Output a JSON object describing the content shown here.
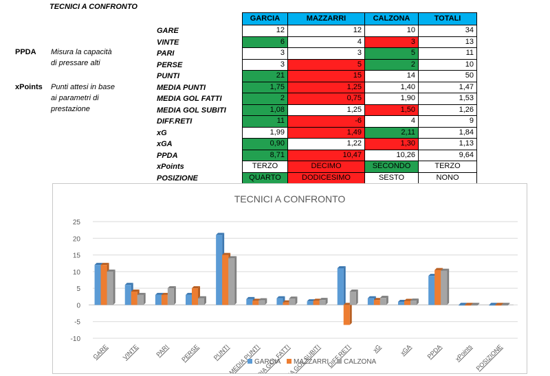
{
  "sheet": {
    "title": "TECNICI A CONFRONTO",
    "side_labels": [
      {
        "name": "PPDA",
        "desc": [
          "Misura la capacità",
          "di pressare alti"
        ]
      },
      {
        "name": "xPoints",
        "desc": [
          "Punti attesi in base",
          "ai parametri di",
          "prestazione"
        ]
      }
    ],
    "columns": [
      "GARCIA",
      "MAZZARRI",
      "CALZONA",
      "TOTALI"
    ],
    "rows": [
      {
        "label": "GARE",
        "cells": [
          {
            "v": "12",
            "c": ""
          },
          {
            "v": "12",
            "c": ""
          },
          {
            "v": "10",
            "c": ""
          },
          {
            "v": "34",
            "c": ""
          }
        ]
      },
      {
        "label": "VINTE",
        "cells": [
          {
            "v": "6",
            "c": "g"
          },
          {
            "v": "4",
            "c": ""
          },
          {
            "v": "3",
            "c": "r"
          },
          {
            "v": "13",
            "c": ""
          }
        ]
      },
      {
        "label": "PARI",
        "cells": [
          {
            "v": "3",
            "c": ""
          },
          {
            "v": "3",
            "c": ""
          },
          {
            "v": "5",
            "c": "g"
          },
          {
            "v": "11",
            "c": ""
          }
        ]
      },
      {
        "label": "PERSE",
        "cells": [
          {
            "v": "3",
            "c": ""
          },
          {
            "v": "5",
            "c": "r"
          },
          {
            "v": "2",
            "c": "g"
          },
          {
            "v": "10",
            "c": ""
          }
        ]
      },
      {
        "label": "PUNTI",
        "cells": [
          {
            "v": "21",
            "c": "g"
          },
          {
            "v": "15",
            "c": "r"
          },
          {
            "v": "14",
            "c": ""
          },
          {
            "v": "50",
            "c": ""
          }
        ]
      },
      {
        "label": "MEDIA PUNTI",
        "cells": [
          {
            "v": "1,75",
            "c": "g"
          },
          {
            "v": "1,25",
            "c": "r"
          },
          {
            "v": "1,40",
            "c": ""
          },
          {
            "v": "1,47",
            "c": ""
          }
        ]
      },
      {
        "label": "MEDIA GOL FATTI",
        "cells": [
          {
            "v": "2",
            "c": "g"
          },
          {
            "v": "0,75",
            "c": "r"
          },
          {
            "v": "1,90",
            "c": ""
          },
          {
            "v": "1,53",
            "c": ""
          }
        ]
      },
      {
        "label": "MEDIA GOL SUBITI",
        "cells": [
          {
            "v": "1,08",
            "c": "g"
          },
          {
            "v": "1,25",
            "c": ""
          },
          {
            "v": "1,50",
            "c": "r"
          },
          {
            "v": "1,26",
            "c": ""
          }
        ]
      },
      {
        "label": "DIFF.RETI",
        "cells": [
          {
            "v": "11",
            "c": "g"
          },
          {
            "v": "-6",
            "c": "r"
          },
          {
            "v": "4",
            "c": ""
          },
          {
            "v": "9",
            "c": ""
          }
        ]
      },
      {
        "label": "xG",
        "cells": [
          {
            "v": "1,99",
            "c": ""
          },
          {
            "v": "1,49",
            "c": "r"
          },
          {
            "v": "2,11",
            "c": "g"
          },
          {
            "v": "1,84",
            "c": ""
          }
        ]
      },
      {
        "label": "xGA",
        "cells": [
          {
            "v": "0,90",
            "c": "g"
          },
          {
            "v": "1,22",
            "c": ""
          },
          {
            "v": "1,30",
            "c": "r"
          },
          {
            "v": "1,13",
            "c": ""
          }
        ]
      },
      {
        "label": "PPDA",
        "cells": [
          {
            "v": "8,71",
            "c": "g"
          },
          {
            "v": "10,47",
            "c": "r"
          },
          {
            "v": "10,26",
            "c": ""
          },
          {
            "v": "9,64",
            "c": ""
          }
        ]
      },
      {
        "label": "xPoints",
        "cells": [
          {
            "v": "TERZO",
            "c": "center"
          },
          {
            "v": "DECIMO",
            "c": "r center"
          },
          {
            "v": "SECONDO",
            "c": "g center"
          },
          {
            "v": "TERZO",
            "c": "center"
          }
        ]
      },
      {
        "label": "POSIZIONE",
        "cells": [
          {
            "v": "QUARTO",
            "c": "g center"
          },
          {
            "v": "DODICESIMO",
            "c": "r center"
          },
          {
            "v": "SESTO",
            "c": "center"
          },
          {
            "v": "NONO",
            "c": "center"
          }
        ]
      }
    ]
  },
  "colors": {
    "green": "#22a050",
    "red": "#ff1f1f",
    "header": "#00b0f0",
    "garcia": "#5b9bd5",
    "mazzarri": "#ed7d31",
    "calzona": "#a5a5a5"
  },
  "chart_data": {
    "type": "bar",
    "title": "TECNICI A CONFRONTO",
    "categories": [
      "GARE",
      "VINTE",
      "PARI",
      "PERSE",
      "PUNTI",
      "MEDIA PUNTI",
      "MEDIA GOL FATTI",
      "MEDIA GOL SUBITI",
      "DIFF.RETI",
      "xG",
      "xGA",
      "PPDA",
      "xPoints",
      "POSIZIONE"
    ],
    "series": [
      {
        "name": "GARCIA",
        "values": [
          12,
          6,
          3,
          3,
          21,
          1.75,
          2,
          1.08,
          11,
          1.99,
          0.9,
          8.71,
          0,
          0
        ]
      },
      {
        "name": "MAZZARRI",
        "values": [
          12,
          4,
          3,
          5,
          15,
          1.25,
          0.75,
          1.25,
          -6,
          1.49,
          1.22,
          10.47,
          0,
          0
        ]
      },
      {
        "name": "CALZONA",
        "values": [
          10,
          3,
          5,
          2,
          14,
          1.4,
          1.9,
          1.5,
          4,
          2.11,
          1.3,
          10.26,
          0,
          0
        ]
      }
    ],
    "ylim": [
      -10,
      25
    ],
    "yticks": [
      -10,
      -5,
      0,
      5,
      10,
      15,
      20,
      25
    ],
    "legend": "bottom",
    "grid": true,
    "style": "3d-clustered-column"
  }
}
